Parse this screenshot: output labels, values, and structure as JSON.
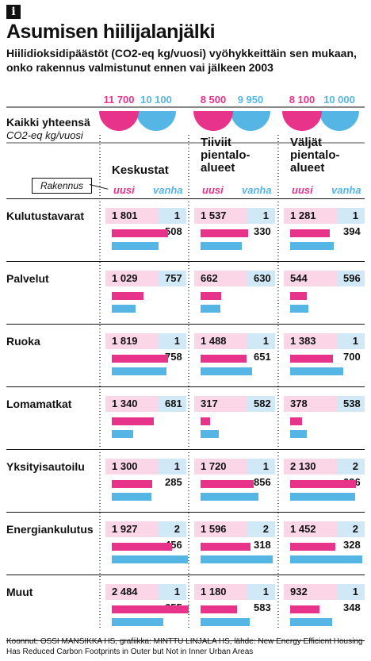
{
  "header": {
    "icon": "info-icon",
    "title": "Asumisen hiilijalanjälki",
    "subtitle": "Hiilidioksidipäästöt (CO2-eq kg/vuosi) vyöhykkeittäin sen mukaan, onko rakennus valmistunut ennen vai jälkeen 2003"
  },
  "totals": {
    "label": "Kaikki yhteensä",
    "unit": "CO2-eq kg/vuosi"
  },
  "legend": {
    "rakennus": "Rakennus",
    "new_label": "uusi",
    "old_label": "vanha"
  },
  "colors": {
    "new": "#e8338b",
    "old": "#55b6e6",
    "new_light": "#fbd6e7",
    "old_light": "#d1e9f7"
  },
  "credits": "Koonnut: OSSI MANSIKKA HS, grafiikka: MINTTU LINJALA HS, lähde: New Energy Efficient Housing Has Reduced Carbon Footprints in Outer but Not in Inner Urban Areas",
  "chart_data": {
    "type": "bar",
    "title": "Asumisen hiilijalanjälki",
    "groups": [
      {
        "name": "Keskustat",
        "total_new_label": "11 700",
        "total_old_label": "10 100",
        "total_new": 11700,
        "total_old": 10100
      },
      {
        "name": "Tiiviit pientalo-alueet",
        "total_new_label": "8 500",
        "total_old_label": "9 950",
        "total_new": 8500,
        "total_old": 9950
      },
      {
        "name": "Väljät pientalo-alueet",
        "total_new_label": "8 100",
        "total_old_label": "10 000",
        "total_new": 8100,
        "total_old": 10000
      }
    ],
    "series": [
      {
        "name": "uusi",
        "color": "#e8338b"
      },
      {
        "name": "vanha",
        "color": "#55b6e6"
      }
    ],
    "categories": [
      {
        "name": "Kulutustavarat",
        "labels": [
          [
            "1 801",
            "1 508"
          ],
          [
            "1 537",
            "1 330"
          ],
          [
            "1 281",
            "1 394"
          ]
        ],
        "values": [
          [
            1801,
            1508
          ],
          [
            1537,
            1330
          ],
          [
            1281,
            1394
          ]
        ]
      },
      {
        "name": "Palvelut",
        "labels": [
          [
            "1 029",
            "757"
          ],
          [
            "662",
            "630"
          ],
          [
            "544",
            "596"
          ]
        ],
        "values": [
          [
            1029,
            757
          ],
          [
            662,
            630
          ],
          [
            544,
            596
          ]
        ]
      },
      {
        "name": "Ruoka",
        "labels": [
          [
            "1 819",
            "1 758"
          ],
          [
            "1 488",
            "1 651"
          ],
          [
            "1 383",
            "1 700"
          ]
        ],
        "values": [
          [
            1819,
            1758
          ],
          [
            1488,
            1651
          ],
          [
            1383,
            1700
          ]
        ]
      },
      {
        "name": "Lomamatkat",
        "labels": [
          [
            "1 340",
            "681"
          ],
          [
            "317",
            "582"
          ],
          [
            "378",
            "538"
          ]
        ],
        "values": [
          [
            1340,
            681
          ],
          [
            317,
            582
          ],
          [
            378,
            538
          ]
        ]
      },
      {
        "name": "Yksityisautoilu",
        "labels": [
          [
            "1 300",
            "1 285"
          ],
          [
            "1 720",
            "1 856"
          ],
          [
            "2 130",
            "2 096"
          ]
        ],
        "values": [
          [
            1300,
            1285
          ],
          [
            1720,
            1856
          ],
          [
            2130,
            2096
          ]
        ]
      },
      {
        "name": "Energiankulutus",
        "labels": [
          [
            "1 927",
            "2 456"
          ],
          [
            "1 596",
            "2 318"
          ],
          [
            "1 452",
            "2 328"
          ]
        ],
        "values": [
          [
            1927,
            2456
          ],
          [
            1596,
            2318
          ],
          [
            1452,
            2328
          ]
        ]
      },
      {
        "name": "Muut",
        "labels": [
          [
            "2 484",
            "1 655"
          ],
          [
            "1 180",
            "1 583"
          ],
          [
            "932",
            "1 348"
          ]
        ],
        "values": [
          [
            2484,
            1655
          ],
          [
            1180,
            1583
          ],
          [
            932,
            1348
          ]
        ]
      }
    ],
    "bar_max": 2500
  }
}
